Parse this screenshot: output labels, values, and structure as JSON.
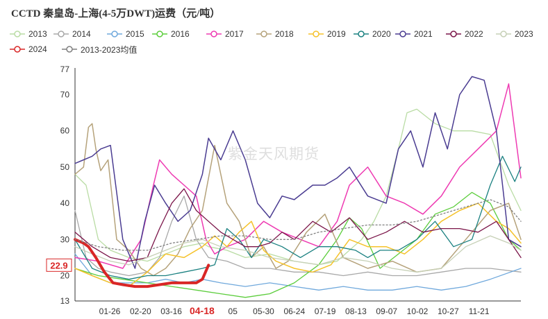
{
  "title": "CCTD 秦皇岛-上海(4-5万DWT)运费（元/吨）",
  "watermark": "紫金天风期货",
  "legend": [
    {
      "label": "2013",
      "color": "#b9dca4"
    },
    {
      "label": "2014",
      "color": "#a8a8a8"
    },
    {
      "label": "2015",
      "color": "#6fa8dc"
    },
    {
      "label": "2016",
      "color": "#5ccd3c"
    },
    {
      "label": "2017",
      "color": "#ee3ab2"
    },
    {
      "label": "2018",
      "color": "#b5a27a"
    },
    {
      "label": "2019",
      "color": "#f5c22a"
    },
    {
      "label": "2020",
      "color": "#1a8080"
    },
    {
      "label": "2021",
      "color": "#4a3c91"
    },
    {
      "label": "2022",
      "color": "#7a1448"
    },
    {
      "label": "2023",
      "color": "#c6d0b6"
    },
    {
      "label": "2024",
      "color": "#d92626"
    },
    {
      "label": "2013-2023均值",
      "color": "#7f7f7f"
    }
  ],
  "chart_data": {
    "type": "line",
    "title": "CCTD 秦皇岛-上海(4-5万DWT)运费（元/吨）",
    "xlabel": "",
    "ylabel": "",
    "ylim": [
      13,
      77
    ],
    "y_ticks": [
      "77",
      "70",
      "60",
      "50",
      "40",
      "30",
      "20",
      "13"
    ],
    "x_ticks": [
      "01-26",
      "02-20",
      "03-16",
      "04-18",
      "05",
      "05-30",
      "06-24",
      "07-19",
      "08-13",
      "09-07",
      "10-02",
      "10-27",
      "11-21"
    ],
    "highlight_tick": "04-18",
    "last_value_label": "22.9",
    "series": [
      {
        "name": "2013",
        "color": "#b9dca4",
        "dash": false,
        "width": 1.3,
        "x": [
          1,
          10,
          20,
          30,
          45,
          60,
          75,
          90,
          105,
          110,
          125,
          140,
          160,
          180,
          200,
          215,
          235,
          245,
          255,
          265,
          272,
          280,
          295,
          310,
          325,
          340,
          355,
          365
        ],
        "y": [
          48,
          45,
          30,
          27,
          25,
          24,
          26,
          28,
          29,
          28,
          27,
          25,
          26,
          24,
          23,
          24,
          30,
          35,
          42,
          55,
          65,
          66,
          62,
          60,
          60,
          59,
          45,
          38
        ]
      },
      {
        "name": "2014",
        "color": "#a8a8a8",
        "dash": false,
        "width": 1.3,
        "x": [
          1,
          10,
          20,
          30,
          45,
          60,
          70,
          80,
          90,
          100,
          110,
          125,
          140,
          160,
          180,
          200,
          220,
          240,
          260,
          280,
          300,
          320,
          340,
          365
        ],
        "y": [
          38,
          25,
          22,
          21,
          20,
          21,
          25,
          35,
          42,
          30,
          25,
          24,
          22,
          22,
          21,
          21,
          20,
          21,
          20,
          20,
          21,
          22,
          22,
          21
        ]
      },
      {
        "name": "2015",
        "color": "#6fa8dc",
        "dash": false,
        "width": 1.3,
        "x": [
          1,
          15,
          30,
          45,
          60,
          75,
          90,
          105,
          120,
          140,
          160,
          180,
          200,
          220,
          240,
          260,
          280,
          300,
          320,
          340,
          365
        ],
        "y": [
          26,
          20,
          18,
          18,
          18,
          19,
          18,
          19,
          18,
          17,
          18,
          17,
          16,
          17,
          16,
          16,
          17,
          16,
          17,
          19,
          22
        ]
      },
      {
        "name": "2016",
        "color": "#5ccd3c",
        "dash": false,
        "width": 1.3,
        "x": [
          1,
          20,
          40,
          60,
          80,
          100,
          120,
          140,
          160,
          180,
          200,
          215,
          225,
          235,
          250,
          265,
          280,
          295,
          310,
          325,
          340,
          355,
          365
        ],
        "y": [
          22,
          20,
          19,
          18,
          17,
          16,
          15,
          14,
          15,
          18,
          23,
          30,
          36,
          33,
          22,
          26,
          30,
          37,
          39,
          43,
          40,
          30,
          27
        ]
      },
      {
        "name": "2017",
        "color": "#ee3ab2",
        "dash": false,
        "width": 1.5,
        "x": [
          1,
          20,
          40,
          55,
          65,
          70,
          80,
          90,
          100,
          108,
          115,
          125,
          140,
          155,
          170,
          185,
          200,
          215,
          225,
          240,
          255,
          270,
          285,
          300,
          315,
          330,
          345,
          355,
          365
        ],
        "y": [
          25,
          24,
          22,
          30,
          45,
          52,
          48,
          45,
          42,
          30,
          26,
          28,
          30,
          35,
          32,
          30,
          28,
          35,
          45,
          50,
          42,
          40,
          37,
          42,
          50,
          55,
          60,
          73,
          47
        ]
      },
      {
        "name": "2018",
        "color": "#b5a27a",
        "dash": false,
        "width": 1.5,
        "x": [
          1,
          8,
          12,
          15,
          18,
          22,
          28,
          35,
          45,
          55,
          65,
          75,
          85,
          95,
          105,
          115,
          125,
          135,
          145,
          155,
          165,
          175,
          190,
          205,
          220,
          240,
          260,
          280,
          300,
          320,
          340,
          355,
          365
        ],
        "y": [
          48,
          50,
          61,
          62,
          55,
          49,
          52,
          30,
          27,
          22,
          20,
          22,
          26,
          33,
          38,
          56,
          40,
          35,
          25,
          28,
          22,
          24,
          32,
          37,
          25,
          22,
          24,
          21,
          22,
          30,
          38,
          40,
          30
        ]
      },
      {
        "name": "2019",
        "color": "#f5c22a",
        "dash": false,
        "width": 1.5,
        "x": [
          1,
          15,
          30,
          45,
          60,
          75,
          90,
          105,
          115,
          125,
          135,
          145,
          155,
          165,
          180,
          195,
          210,
          225,
          240,
          255,
          270,
          285,
          300,
          315,
          330,
          345,
          355,
          365
        ],
        "y": [
          22,
          20,
          18,
          17,
          21,
          26,
          25,
          28,
          31,
          28,
          32,
          35,
          27,
          24,
          22,
          21,
          23,
          30,
          28,
          28,
          26,
          30,
          35,
          38,
          40,
          35,
          33,
          29
        ]
      },
      {
        "name": "2020",
        "color": "#1a8080",
        "dash": false,
        "width": 1.3,
        "x": [
          1,
          15,
          30,
          45,
          60,
          75,
          90,
          105,
          115,
          125,
          135,
          145,
          155,
          170,
          185,
          200,
          215,
          230,
          240,
          250,
          265,
          280,
          295,
          310,
          325,
          340,
          350,
          360,
          365
        ],
        "y": [
          30,
          22,
          20,
          19,
          20,
          20,
          21,
          22,
          23,
          33,
          30,
          25,
          30,
          28,
          25,
          28,
          28,
          27,
          25,
          27,
          27,
          30,
          35,
          28,
          30,
          45,
          53,
          46,
          50
        ]
      },
      {
        "name": "2021",
        "color": "#4a3c91",
        "dash": false,
        "width": 1.5,
        "x": [
          1,
          8,
          15,
          22,
          30,
          40,
          50,
          58,
          66,
          75,
          85,
          95,
          105,
          110,
          120,
          130,
          140,
          150,
          160,
          170,
          180,
          195,
          205,
          215,
          225,
          240,
          255,
          265,
          275,
          285,
          295,
          305,
          315,
          325,
          335,
          345,
          355,
          365
        ],
        "y": [
          51,
          52,
          53,
          55,
          56,
          30,
          22,
          35,
          45,
          40,
          35,
          38,
          48,
          58,
          52,
          60,
          52,
          40,
          36,
          42,
          41,
          45,
          45,
          47,
          50,
          42,
          40,
          55,
          60,
          50,
          65,
          55,
          70,
          75,
          74,
          60,
          30,
          28
        ]
      },
      {
        "name": "2022",
        "color": "#7a1448",
        "dash": false,
        "width": 1.3,
        "x": [
          1,
          15,
          30,
          45,
          60,
          70,
          80,
          90,
          100,
          110,
          120,
          130,
          140,
          150,
          160,
          170,
          180,
          195,
          210,
          225,
          240,
          255,
          270,
          285,
          300,
          315,
          330,
          345,
          355,
          365
        ],
        "y": [
          32,
          28,
          25,
          24,
          25,
          33,
          40,
          44,
          38,
          35,
          32,
          30,
          28,
          28,
          29,
          32,
          30,
          35,
          32,
          36,
          30,
          32,
          35,
          32,
          33,
          33,
          32,
          35,
          30,
          25
        ]
      },
      {
        "name": "2023",
        "color": "#c6d0b6",
        "dash": false,
        "width": 1.3,
        "x": [
          1,
          15,
          30,
          45,
          60,
          75,
          90,
          105,
          120,
          140,
          160,
          180,
          200,
          220,
          240,
          260,
          280,
          300,
          320,
          340,
          355,
          365
        ],
        "y": [
          28,
          26,
          24,
          23,
          25,
          27,
          29,
          30,
          28,
          27,
          25,
          24,
          23,
          25,
          24,
          22,
          21,
          22,
          28,
          31,
          29,
          27
        ]
      },
      {
        "name": "2024",
        "color": "#d92626",
        "dash": false,
        "width": 4,
        "x": [
          1,
          8,
          12,
          18,
          25,
          32,
          40,
          50,
          60,
          70,
          80,
          90,
          100,
          105,
          110
        ],
        "y": [
          30,
          29,
          28,
          25,
          21,
          18,
          17.5,
          17,
          17,
          17.5,
          18,
          18,
          18,
          19,
          22.9
        ]
      },
      {
        "name": "2013-2023均值",
        "color": "#7f7f7f",
        "dash": true,
        "width": 1.3,
        "x": [
          1,
          20,
          40,
          60,
          80,
          100,
          120,
          140,
          160,
          180,
          200,
          220,
          240,
          260,
          280,
          300,
          320,
          340,
          355,
          365
        ],
        "y": [
          30,
          28,
          27,
          27,
          29,
          30,
          31,
          31,
          30,
          30,
          32,
          33,
          34,
          34,
          35,
          37,
          39,
          41,
          39,
          35
        ]
      }
    ]
  }
}
